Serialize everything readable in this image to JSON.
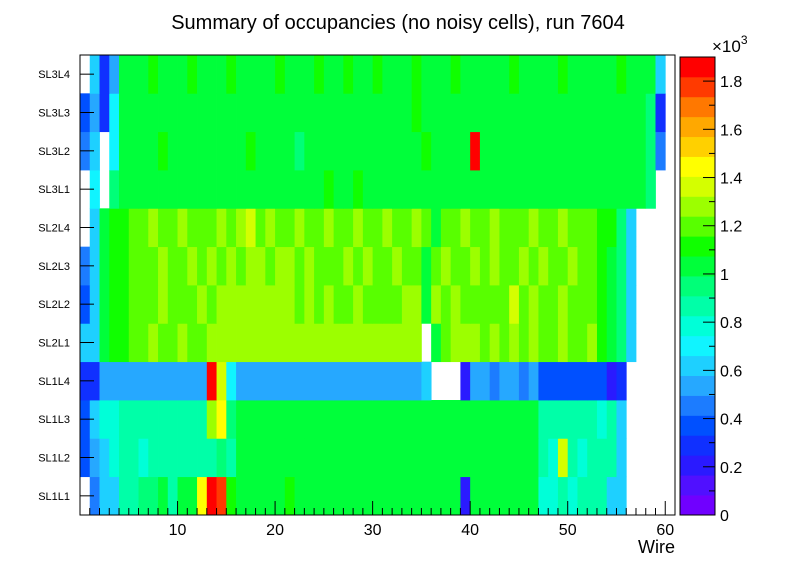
{
  "chart_data": {
    "type": "heatmap",
    "title": "Summary of occupancies (no noisy cells), run 7604",
    "xlabel": "Wire",
    "ylabel": "",
    "xlim": [
      0,
      61
    ],
    "x_ticks": [
      10,
      20,
      30,
      40,
      50,
      60
    ],
    "z_multiplier_label": "×10",
    "z_multiplier_exponent": "3",
    "z_ticks": [
      0,
      0.2,
      0.4,
      0.6,
      0.8,
      1,
      1.2,
      1.4,
      1.6,
      1.8
    ],
    "z_tick_labels": [
      "0",
      "0.2",
      "0.4",
      "0.6",
      "0.8",
      "1",
      "1.2",
      "1.4",
      "1.6",
      "1.8"
    ],
    "zlim": [
      0,
      1.9
    ],
    "z_units": "thousands",
    "palette": [
      "#7000ff",
      "#5010ff",
      "#2a1aff",
      "#1030ff",
      "#0050ff",
      "#1c7cff",
      "#26a8ff",
      "#1ed0ff",
      "#10f4ff",
      "#00ffd8",
      "#00ffa8",
      "#00ff78",
      "#00ff3a",
      "#10ff00",
      "#58ff00",
      "#9cff00",
      "#d4ff00",
      "#ffff00",
      "#ffd000",
      "#ffa800",
      "#ff7800",
      "#ff3a00",
      "#ff0000"
    ],
    "rows": [
      {
        "label": "SL1L1",
        "values": [
          null,
          0.45,
          0.65,
          0.65,
          0.85,
          0.9,
          0.95,
          0.95,
          1.0,
          0.9,
          1.0,
          1.0,
          1.45,
          1.9,
          1.8,
          1.1,
          1.0,
          1.05,
          1.0,
          1.05,
          1.0,
          1.1,
          1.05,
          1.0,
          1.05,
          1.0,
          1.05,
          1.05,
          1.0,
          1.05,
          1.0,
          1.05,
          1.0,
          1.0,
          1.05,
          1.0,
          1.05,
          1.0,
          1.0,
          0.2,
          1.0,
          1.05,
          1.0,
          1.0,
          1.05,
          1.0,
          1.05,
          0.8,
          0.75,
          0.85,
          0.8,
          0.85,
          0.85,
          0.85,
          0.65,
          0.6,
          null,
          null,
          null,
          null
        ]
      },
      {
        "label": "SL1L2",
        "values": [
          0.4,
          0.55,
          0.65,
          0.75,
          0.85,
          0.9,
          0.8,
          0.85,
          0.9,
          0.85,
          0.9,
          0.9,
          0.85,
          0.9,
          0.95,
          0.9,
          1.0,
          1.05,
          1.0,
          1.05,
          1.0,
          1.0,
          1.05,
          1.0,
          1.05,
          1.0,
          1.05,
          1.0,
          1.0,
          1.05,
          1.0,
          1.05,
          1.0,
          1.0,
          1.05,
          1.0,
          1.05,
          1.0,
          1.0,
          1.0,
          1.05,
          1.0,
          1.05,
          1.0,
          1.05,
          1.0,
          1.0,
          0.85,
          0.8,
          1.4,
          0.85,
          0.8,
          0.9,
          0.85,
          0.85,
          0.6,
          null,
          null,
          null,
          null
        ]
      },
      {
        "label": "SL1L3",
        "values": [
          0.4,
          0.6,
          0.75,
          0.8,
          0.85,
          0.9,
          0.85,
          0.9,
          0.85,
          0.9,
          0.85,
          0.9,
          0.9,
          1.25,
          1.45,
          0.95,
          1.0,
          1.05,
          1.0,
          1.0,
          1.05,
          1.0,
          1.05,
          1.0,
          1.0,
          1.05,
          1.0,
          1.05,
          1.0,
          1.0,
          1.05,
          1.0,
          1.0,
          1.05,
          1.0,
          1.05,
          1.0,
          1.05,
          1.0,
          1.05,
          1.0,
          1.0,
          1.05,
          1.0,
          1.05,
          1.0,
          1.0,
          0.9,
          0.85,
          0.9,
          0.85,
          0.9,
          0.85,
          0.8,
          0.85,
          0.65,
          null,
          null,
          null,
          null
        ]
      },
      {
        "label": "SL1L4",
        "values": [
          0.3,
          0.3,
          0.5,
          0.5,
          0.5,
          0.5,
          0.5,
          0.5,
          0.5,
          0.55,
          0.5,
          0.55,
          0.5,
          1.9,
          1.4,
          0.7,
          0.5,
          0.5,
          0.5,
          0.5,
          0.5,
          0.55,
          0.55,
          0.5,
          0.5,
          0.5,
          0.5,
          0.5,
          0.5,
          0.5,
          0.5,
          0.5,
          0.5,
          0.5,
          0.55,
          0.65,
          null,
          null,
          null,
          0.2,
          0.5,
          0.5,
          0.45,
          0.5,
          0.5,
          0.45,
          0.5,
          0.35,
          0.35,
          0.35,
          0.35,
          0.35,
          0.35,
          0.35,
          0.2,
          0.3,
          null,
          null,
          null,
          null
        ]
      },
      {
        "label": "SL2L1",
        "values": [
          0.65,
          0.65,
          1.05,
          1.1,
          1.1,
          1.2,
          1.2,
          1.25,
          1.2,
          1.2,
          1.25,
          1.2,
          1.2,
          1.3,
          1.3,
          1.25,
          1.3,
          1.3,
          1.3,
          1.3,
          1.3,
          1.3,
          1.3,
          1.3,
          1.25,
          1.25,
          1.3,
          1.25,
          1.3,
          1.3,
          1.3,
          1.3,
          1.3,
          1.3,
          1.3,
          null,
          1.05,
          1.2,
          1.25,
          1.25,
          1.25,
          1.2,
          1.25,
          1.2,
          1.25,
          1.2,
          1.25,
          1.2,
          1.2,
          1.25,
          1.2,
          1.2,
          1.25,
          1.1,
          1.05,
          0.95,
          0.65,
          null,
          null,
          null
        ]
      },
      {
        "label": "SL2L2",
        "values": [
          0.4,
          0.6,
          1.05,
          1.1,
          1.15,
          1.2,
          1.2,
          1.2,
          1.25,
          1.2,
          1.2,
          1.2,
          1.25,
          1.2,
          1.3,
          1.3,
          1.3,
          1.3,
          1.3,
          1.3,
          1.3,
          1.25,
          1.2,
          1.25,
          1.2,
          1.25,
          1.2,
          1.2,
          1.25,
          1.2,
          1.2,
          1.2,
          1.2,
          1.25,
          1.25,
          1.05,
          1.25,
          1.2,
          1.25,
          1.2,
          1.2,
          1.2,
          1.2,
          1.2,
          1.4,
          1.2,
          1.25,
          1.2,
          1.2,
          1.25,
          1.2,
          1.2,
          1.2,
          1.1,
          1.05,
          0.95,
          0.65,
          null,
          null,
          null
        ]
      },
      {
        "label": "SL2L3",
        "values": [
          0.45,
          0.6,
          1.05,
          1.1,
          1.15,
          1.2,
          1.2,
          1.2,
          1.25,
          1.2,
          1.2,
          1.25,
          1.2,
          1.25,
          1.2,
          1.25,
          1.2,
          1.25,
          1.25,
          1.2,
          1.25,
          1.25,
          1.2,
          1.25,
          1.2,
          1.2,
          1.2,
          1.25,
          1.2,
          1.25,
          1.2,
          1.2,
          1.25,
          1.2,
          1.2,
          1.05,
          1.2,
          1.25,
          1.2,
          1.2,
          1.25,
          1.2,
          1.25,
          1.2,
          1.2,
          1.25,
          1.2,
          1.25,
          1.2,
          1.2,
          1.25,
          1.2,
          1.2,
          1.1,
          1.05,
          0.95,
          0.65,
          null,
          null,
          null
        ]
      },
      {
        "label": "SL2L4",
        "values": [
          null,
          0.6,
          1.05,
          1.1,
          1.15,
          1.2,
          1.2,
          1.25,
          1.2,
          1.2,
          1.25,
          1.2,
          1.2,
          1.2,
          1.25,
          1.2,
          1.25,
          1.4,
          1.2,
          1.25,
          1.2,
          1.2,
          1.25,
          1.2,
          1.2,
          1.25,
          1.2,
          1.2,
          1.25,
          1.2,
          1.2,
          1.25,
          1.2,
          1.2,
          1.25,
          1.2,
          1.05,
          1.2,
          1.2,
          1.25,
          1.2,
          1.2,
          1.25,
          1.2,
          1.2,
          1.2,
          1.25,
          1.2,
          1.2,
          1.25,
          1.2,
          1.2,
          1.2,
          1.15,
          1.1,
          0.95,
          0.6,
          null,
          null,
          null
        ]
      },
      {
        "label": "SL3L1",
        "values": [
          null,
          0.7,
          null,
          0.95,
          1.0,
          1.05,
          1.05,
          1.0,
          1.05,
          1.05,
          1.0,
          1.05,
          1.05,
          1.0,
          1.05,
          1.0,
          1.0,
          1.05,
          1.0,
          1.05,
          1.05,
          1.0,
          1.05,
          1.0,
          1.05,
          1.1,
          1.05,
          1.0,
          1.1,
          1.05,
          1.0,
          1.05,
          1.05,
          1.0,
          1.05,
          1.0,
          1.05,
          1.05,
          1.0,
          1.05,
          1.05,
          1.0,
          1.05,
          1.05,
          1.0,
          1.05,
          1.05,
          1.0,
          1.05,
          1.05,
          1.0,
          1.05,
          1.05,
          1.05,
          1.0,
          1.05,
          1.05,
          1.05,
          0.95,
          null
        ]
      },
      {
        "label": "SL3L2",
        "values": [
          0.45,
          0.65,
          null,
          0.7,
          1.0,
          1.05,
          1.05,
          1.05,
          1.1,
          1.05,
          1.05,
          1.0,
          1.05,
          1.05,
          1.0,
          1.05,
          1.05,
          1.1,
          1.05,
          1.05,
          1.0,
          1.05,
          0.95,
          1.05,
          1.05,
          1.0,
          1.05,
          1.05,
          1.0,
          1.05,
          1.05,
          1.05,
          1.0,
          1.05,
          1.05,
          1.1,
          1.05,
          1.05,
          1.05,
          1.0,
          1.9,
          1.05,
          1.05,
          1.0,
          1.05,
          1.05,
          1.05,
          1.0,
          1.05,
          1.05,
          1.0,
          1.05,
          1.05,
          1.05,
          1.0,
          1.05,
          1.05,
          1.05,
          0.95,
          0.45
        ]
      },
      {
        "label": "SL3L3",
        "values": [
          0.4,
          0.55,
          0.3,
          0.7,
          1.0,
          1.05,
          1.05,
          1.05,
          1.05,
          1.0,
          1.05,
          1.05,
          1.05,
          1.0,
          1.05,
          1.05,
          1.05,
          1.05,
          1.0,
          1.05,
          1.05,
          1.05,
          1.0,
          1.05,
          1.05,
          1.05,
          1.05,
          1.0,
          1.05,
          1.05,
          1.05,
          1.0,
          1.05,
          1.05,
          1.1,
          1.05,
          1.05,
          1.0,
          1.05,
          1.05,
          1.05,
          1.0,
          1.05,
          1.05,
          1.05,
          1.0,
          1.05,
          1.05,
          1.05,
          1.0,
          1.05,
          1.05,
          1.05,
          1.0,
          1.05,
          1.05,
          1.05,
          1.05,
          0.95,
          0.3
        ]
      },
      {
        "label": "SL3L4",
        "values": [
          null,
          0.65,
          0.3,
          0.5,
          1.0,
          1.05,
          1.05,
          1.1,
          1.05,
          1.05,
          1.05,
          1.1,
          1.05,
          1.05,
          1.05,
          1.1,
          1.05,
          1.05,
          1.05,
          1.05,
          1.1,
          1.05,
          1.05,
          1.05,
          1.1,
          1.05,
          1.05,
          1.1,
          1.05,
          1.05,
          1.1,
          1.05,
          1.05,
          1.05,
          1.1,
          1.05,
          1.05,
          1.05,
          1.1,
          1.05,
          1.05,
          1.05,
          1.05,
          1.05,
          1.1,
          1.05,
          1.05,
          1.05,
          1.05,
          1.1,
          1.05,
          1.05,
          1.05,
          1.05,
          1.05,
          1.1,
          1.05,
          1.05,
          1.05,
          0.65
        ]
      }
    ]
  }
}
